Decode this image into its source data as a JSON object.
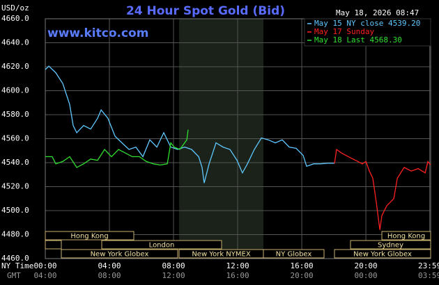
{
  "chart_data": {
    "type": "line",
    "title": "24 Hour Spot Gold (Bid)",
    "y_unit": "USD/oz",
    "watermark": "www.kitco.com",
    "timestamp": "May 18, 2026 08:47",
    "xlim": [
      0,
      24.04
    ],
    "ylim": [
      4460,
      4660
    ],
    "yticks": [
      {
        "value": 4460,
        "label": "4460.0"
      },
      {
        "value": 4480,
        "label": "4480.0"
      },
      {
        "value": 4500,
        "label": "4500.0"
      },
      {
        "value": 4520,
        "label": "4520.0"
      },
      {
        "value": 4540,
        "label": "4540.0"
      },
      {
        "value": 4560,
        "label": "4560.0"
      },
      {
        "value": 4580,
        "label": "4580.0"
      },
      {
        "value": 4600,
        "label": "4600.0"
      },
      {
        "value": 4620,
        "label": "4620.0"
      },
      {
        "value": 4640,
        "label": "4640.0"
      },
      {
        "value": 4660,
        "label": "4660.0"
      }
    ],
    "xticks": [
      {
        "value": 0,
        "label": "00:00"
      },
      {
        "value": 4,
        "label": "04:00"
      },
      {
        "value": 8,
        "label": "08:00"
      },
      {
        "value": 12,
        "label": "12:00"
      },
      {
        "value": 16,
        "label": "16:00"
      },
      {
        "value": 20,
        "label": "20:00"
      },
      {
        "value": 23.98,
        "label": "23:59"
      }
    ],
    "x_label": "NY Time",
    "x2_label": "GMT",
    "x2_ticklabels": [
      "04:00",
      "08:00",
      "12:00",
      "16:00",
      "20:00",
      "00:00",
      "03:59"
    ],
    "sessions": [
      "Hong Kong",
      "London",
      "New York Globex",
      "New York NYMEX",
      "NY Globex",
      "Hong Kong",
      "Sydney",
      "New York Globex"
    ],
    "grid": true,
    "series": [
      {
        "name": "May 15 NY close 4539.20",
        "color": "#5fc8ff",
        "x": [
          0,
          0.22,
          0.65,
          1.09,
          1.52,
          1.74,
          1.96,
          2.39,
          2.83,
          3.26,
          3.48,
          3.91,
          4.35,
          4.78,
          5.22,
          5.65,
          6.09,
          6.52,
          6.96,
          7.39,
          7.83,
          8.26,
          8.7,
          9.13,
          9.57,
          9.78,
          9.91,
          10.22,
          10.65,
          11.09,
          11.52,
          11.96,
          12.3,
          12.61,
          13.04,
          13.48,
          13.91,
          14.35,
          14.78,
          15.22,
          15.65,
          16.09,
          16.3,
          16.74,
          17.17,
          17.61,
          18.04
        ],
        "values": [
          4617.6,
          4620.5,
          4615,
          4606,
          4588.5,
          4571,
          4565,
          4571,
          4568,
          4577,
          4584,
          4577,
          4562,
          4556.5,
          4551,
          4553,
          4545,
          4559,
          4553,
          4565,
          4553,
          4551,
          4553,
          4551,
          4545,
          4536,
          4523,
          4539,
          4556.5,
          4553,
          4551,
          4542,
          4531.5,
          4539,
          4551,
          4560.6,
          4559,
          4556.5,
          4559,
          4553,
          4552,
          4546,
          4537,
          4539,
          4539,
          4539.5,
          4539.5
        ]
      },
      {
        "name": "May 17 Sunday",
        "color": "#ff2020",
        "x": [
          18.04,
          18.17,
          18.48,
          18.91,
          19.35,
          19.78,
          20,
          20.22,
          20.43,
          20.65,
          20.87,
          21,
          21.3,
          21.74,
          21.96,
          22.39,
          22.83,
          23.26,
          23.7,
          23.87,
          24.04
        ],
        "values": [
          4539.2,
          4551,
          4548,
          4545,
          4542,
          4539,
          4541,
          4533,
          4527,
          4507,
          4484,
          4496,
          4504,
          4510,
          4527,
          4536,
          4533,
          4535,
          4531.5,
          4541,
          4538
        ]
      },
      {
        "name": "May 18 Last 4568.30",
        "color": "#30e030",
        "x": [
          0,
          0.43,
          0.65,
          1.09,
          1.52,
          1.96,
          2.39,
          2.83,
          3.26,
          3.7,
          4.13,
          4.57,
          5,
          5.43,
          5.87,
          6.3,
          6.74,
          7.17,
          7.61,
          7.83,
          8.04,
          8.39,
          8.61,
          8.83,
          8.91
        ],
        "values": [
          4545,
          4545,
          4539,
          4541,
          4545,
          4536,
          4539,
          4543,
          4542,
          4551,
          4545,
          4551,
          4548,
          4545,
          4545,
          4541,
          4539,
          4538,
          4539,
          4556.5,
          4553,
          4551,
          4555,
          4559,
          4567.5
        ]
      }
    ]
  }
}
